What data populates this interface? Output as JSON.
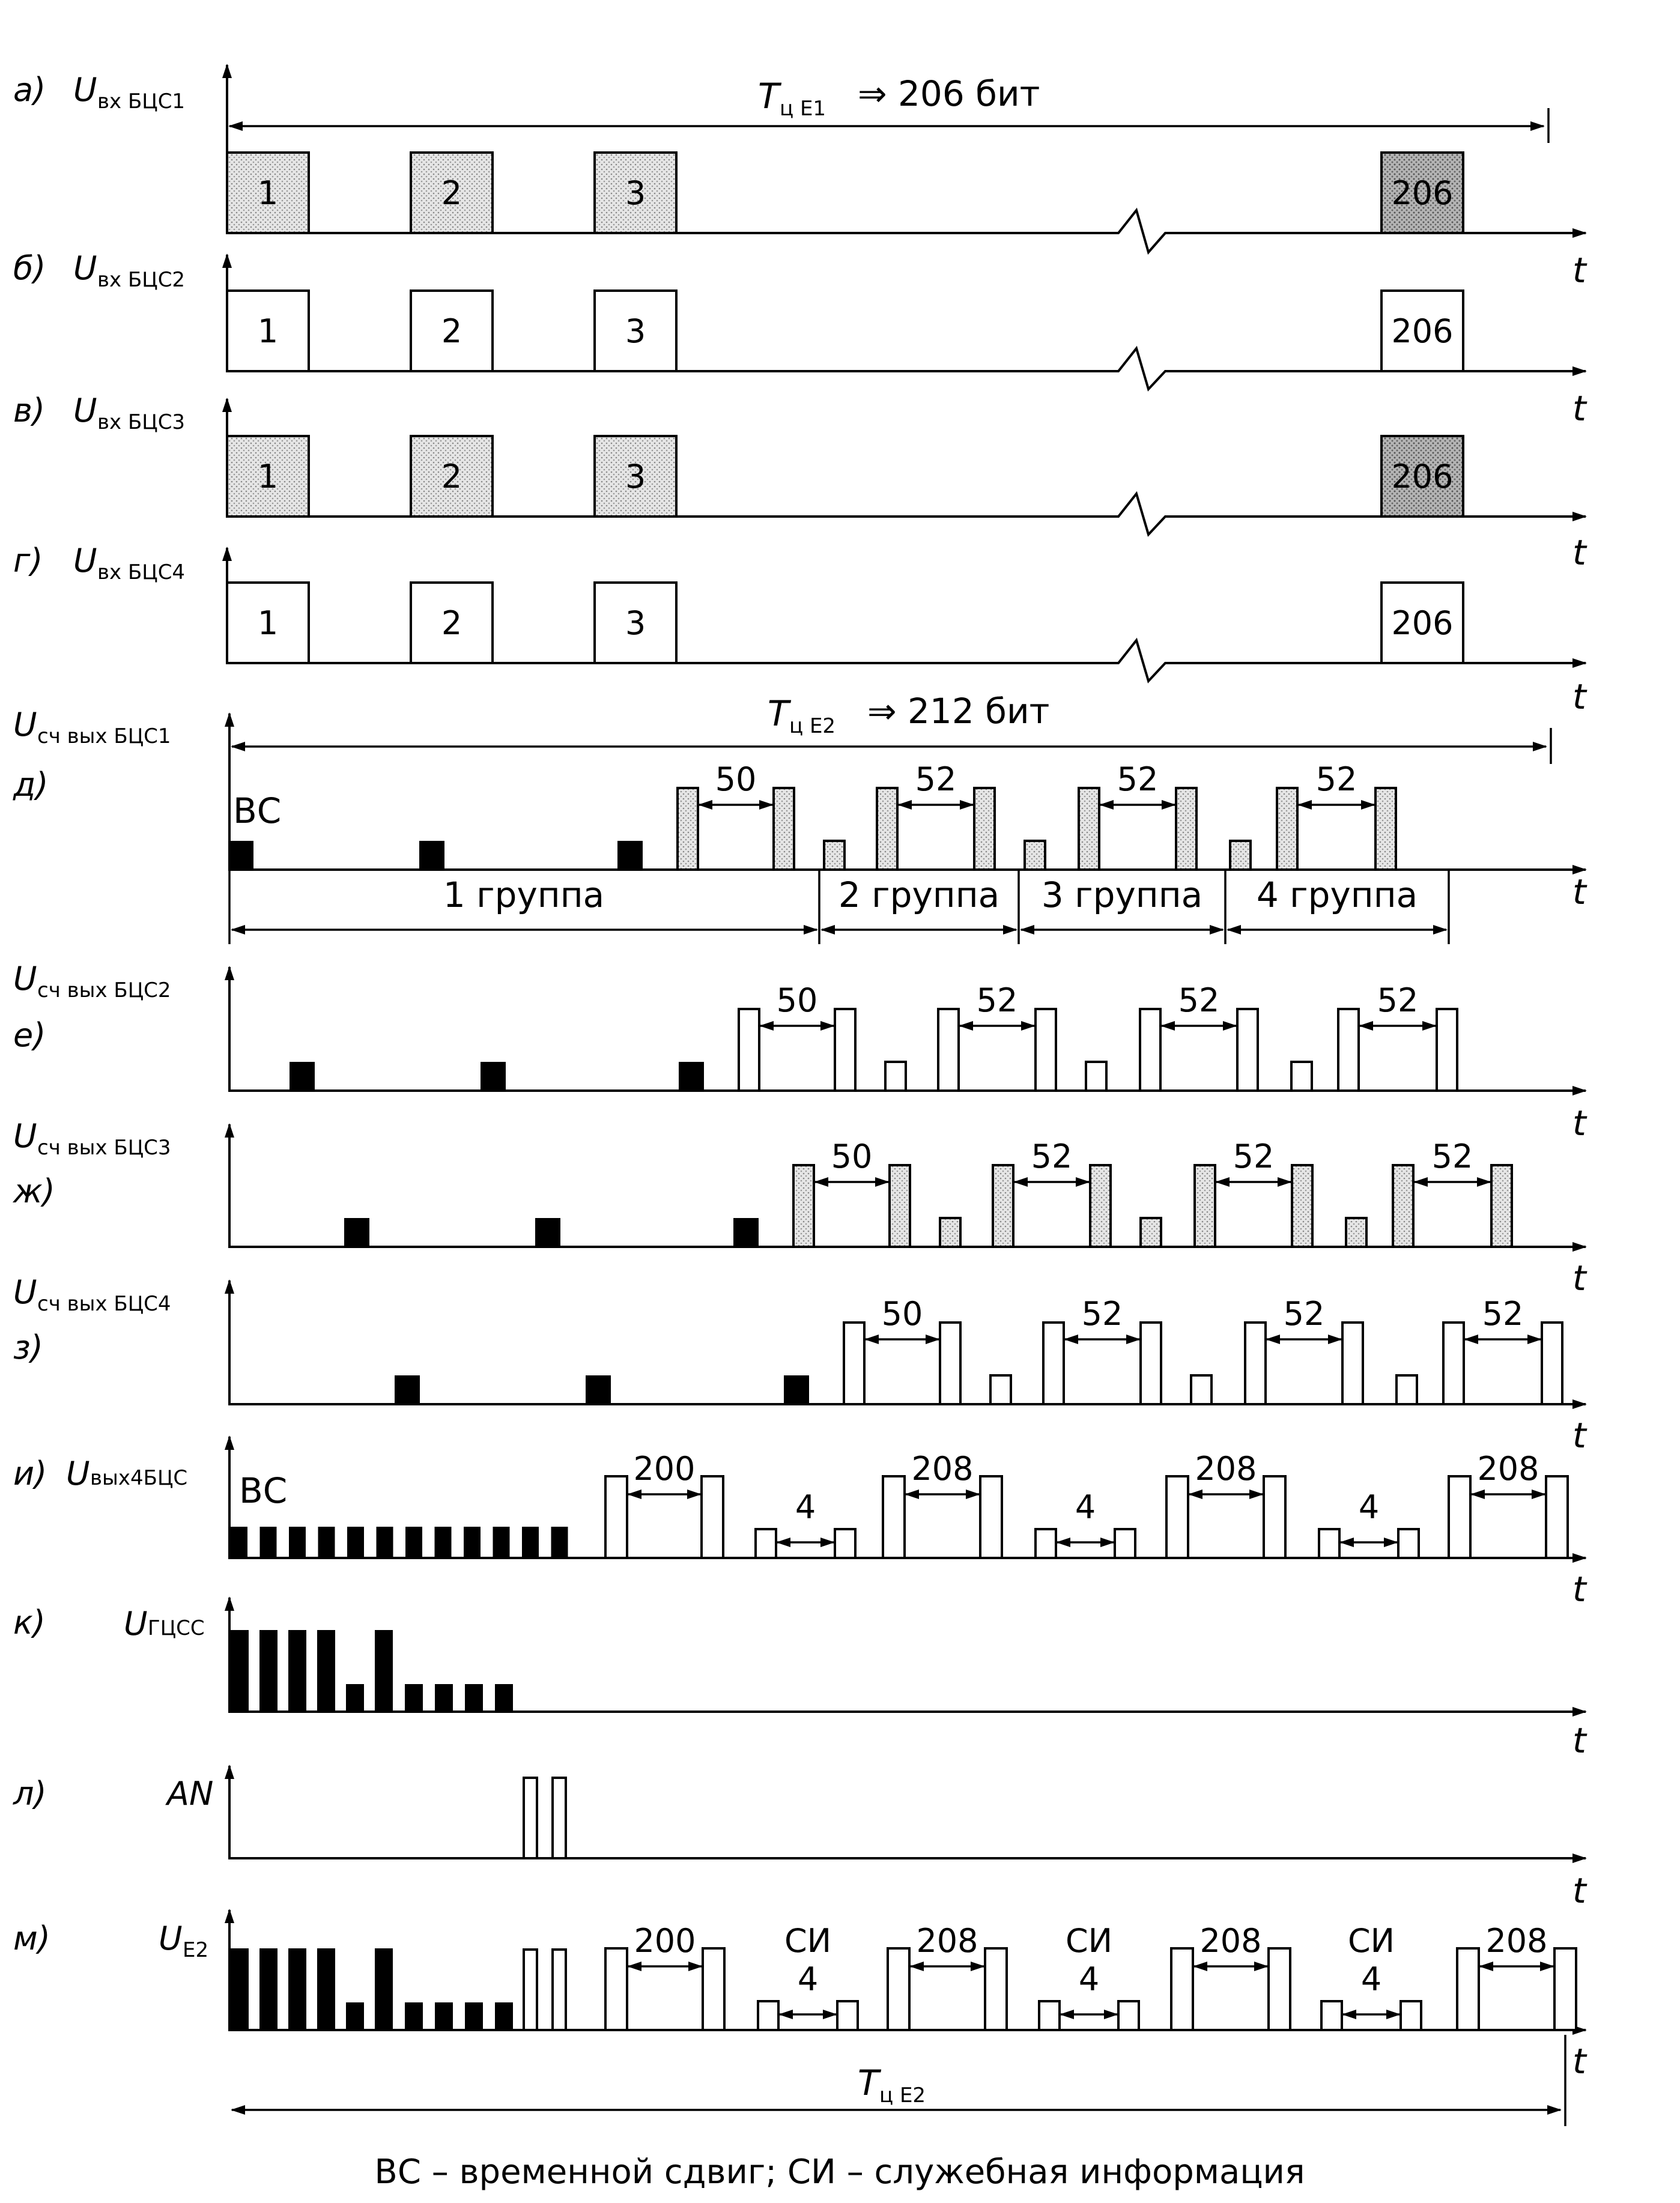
{
  "caption": "ВС – временной сдвиг; СИ – служебная информация",
  "rows": [
    {
      "id": "a",
      "letter": "а)",
      "sym": "U",
      "sub": "вх БЦС1",
      "pulse_labels": [
        "1",
        "2",
        "3",
        "206"
      ],
      "shaded": true
    },
    {
      "id": "b",
      "letter": "б)",
      "sym": "U",
      "sub": "вх БЦС2",
      "pulse_labels": [
        "1",
        "2",
        "3",
        "206"
      ],
      "shaded": false
    },
    {
      "id": "v",
      "letter": "в)",
      "sym": "U",
      "sub": "вх БЦС3",
      "pulse_labels": [
        "1",
        "2",
        "3",
        "206"
      ],
      "shaded": true
    },
    {
      "id": "g",
      "letter": "г)",
      "sym": "U",
      "sub": "вх БЦС4",
      "pulse_labels": [
        "1",
        "2",
        "3",
        "206"
      ],
      "shaded": false
    },
    {
      "id": "d",
      "letter": "д)",
      "sym": "U",
      "sub": "сч вых БЦС1",
      "gaps": [
        "50",
        "52",
        "52",
        "52"
      ],
      "shaded": true
    },
    {
      "id": "e",
      "letter": "е)",
      "sym": "U",
      "sub": "сч вых БЦС2",
      "gaps": [
        "50",
        "52",
        "52",
        "52"
      ],
      "shaded": false
    },
    {
      "id": "zh",
      "letter": "ж)",
      "sym": "U",
      "sub": "сч вых БЦС3",
      "gaps": [
        "50",
        "52",
        "52",
        "52"
      ],
      "shaded": true
    },
    {
      "id": "z",
      "letter": "з)",
      "sym": "U",
      "sub": "сч вых БЦС4",
      "gaps": [
        "50",
        "52",
        "52",
        "52"
      ],
      "shaded": false
    },
    {
      "id": "i",
      "letter": "и)",
      "sym": "U",
      "sub": "вых4БЦС",
      "gaps": [
        "200",
        "4",
        "208",
        "4",
        "208",
        "4",
        "208"
      ]
    },
    {
      "id": "k",
      "letter": "к)",
      "sym": "U",
      "sub": "ГЦСС"
    },
    {
      "id": "l",
      "letter": "л)",
      "sym": "AN",
      "sub": ""
    },
    {
      "id": "m",
      "letter": "м)",
      "sym": "U",
      "sub": "E2",
      "gaps": [
        "200",
        "4",
        "208",
        "4",
        "208",
        "4",
        "208"
      ],
      "si": [
        "СИ",
        "СИ",
        "СИ"
      ]
    }
  ],
  "axis_label": "t",
  "period_e1": {
    "sym": "T",
    "sub": "ц E1",
    "text": "⇒ 206 бит"
  },
  "period_e2": {
    "sym": "T",
    "sub": "ц E2",
    "text": "⇒ 212 бит"
  },
  "period_e2_bottom": {
    "sym": "T",
    "sub": "ц E2"
  },
  "shift_label": "ВС",
  "groups": [
    "1 группа",
    "2 группа",
    "3 группа",
    "4 группа"
  ]
}
